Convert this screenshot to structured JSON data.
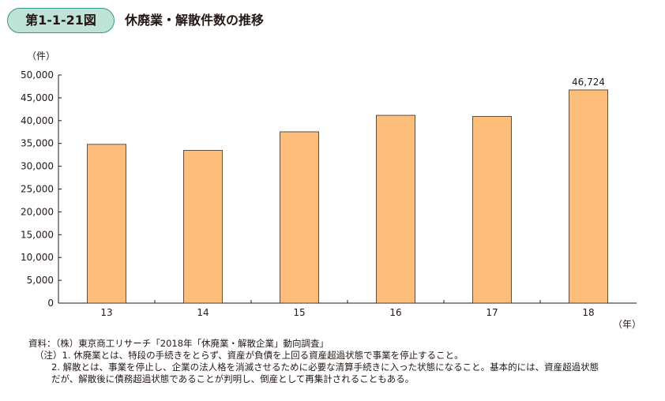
{
  "figure": {
    "number": "第1-1-21図",
    "title": "休廃業・解散件数の推移"
  },
  "colors": {
    "bar_fill": "#fdbe7c",
    "bar_stroke": "#3a2a1a",
    "badge_fill": "#bfe3d6",
    "badge_border": "#2e9a8c"
  },
  "chart_data": {
    "type": "bar",
    "categories": [
      "13",
      "14",
      "15",
      "16",
      "17",
      "18"
    ],
    "values": [
      34800,
      33475,
      37548,
      41162,
      40909,
      46724
    ],
    "data_labels": [
      "",
      "",
      "",
      "",
      "",
      "46,724"
    ],
    "ylabel": "（件）",
    "xlabel": "（年）",
    "ylim": [
      0,
      50000
    ],
    "yticks": [
      "0",
      "5,000",
      "10,000",
      "15,000",
      "20,000",
      "25,000",
      "30,000",
      "35,000",
      "40,000",
      "45,000",
      "50,000"
    ],
    "grid": false
  },
  "notes": {
    "source": "資料：（株）東京商工リサーチ「2018年「休廃業・解散企業」動向調査」",
    "note1": "（注）1. 休廃業とは、特段の手続きをとらず、資産が負債を上回る資産超過状態で事業を停止すること。",
    "note2a": "2. 解散とは、事業を停止し、企業の法人格を消滅させるために必要な清算手続きに入った状態になること。基本的には、資産超過状態",
    "note2b": "だが、解散後に債務超過状態であることが判明し、倒産として再集計されることもある。"
  }
}
